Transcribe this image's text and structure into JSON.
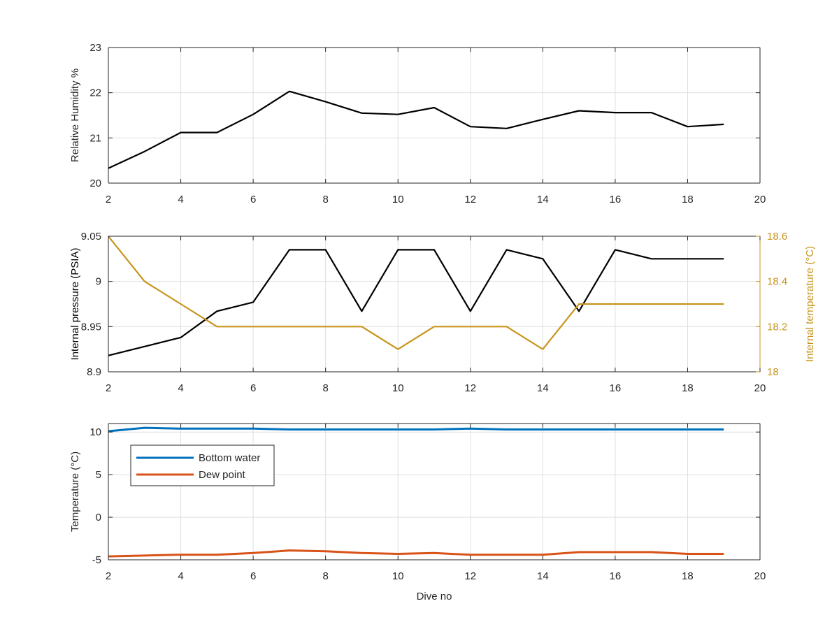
{
  "chart_data": [
    {
      "type": "line",
      "xlabel": "",
      "ylabel": "Relative Humidity %",
      "xlim": [
        2,
        20
      ],
      "ylim": [
        20,
        23
      ],
      "xticks": [
        2,
        4,
        6,
        8,
        10,
        12,
        14,
        16,
        18,
        20
      ],
      "yticks": [
        20,
        21,
        22,
        23
      ],
      "grid": true,
      "series": [
        {
          "color": "#000000",
          "x": [
            2,
            3,
            4,
            5,
            6,
            7,
            8,
            9,
            10,
            11,
            12,
            13,
            14,
            15,
            16,
            17,
            18,
            19
          ],
          "values": [
            20.33,
            20.7,
            21.12,
            21.12,
            21.52,
            22.03,
            21.8,
            21.55,
            21.52,
            21.67,
            21.25,
            21.21,
            21.41,
            21.6,
            21.56,
            21.56,
            21.25,
            21.3
          ]
        }
      ]
    },
    {
      "type": "line",
      "xlabel": "",
      "ylabel": "Internal pressure (PSIA)",
      "ylabel_right": "Internal temperature (°C)",
      "xlim": [
        2,
        20
      ],
      "ylim": [
        8.9,
        9.05
      ],
      "ylim_right": [
        18,
        18.6
      ],
      "xticks": [
        2,
        4,
        6,
        8,
        10,
        12,
        14,
        16,
        18,
        20
      ],
      "yticks": [
        "8.9",
        "8.95",
        "9",
        "9.05"
      ],
      "yticks_right": [
        "18",
        "18.2",
        "18.4",
        "18.6"
      ],
      "grid": true,
      "series": [
        {
          "axis": "left",
          "color": "#000000",
          "x": [
            2,
            3,
            4,
            5,
            6,
            7,
            8,
            9,
            10,
            11,
            12,
            13,
            14,
            15,
            16,
            17,
            18,
            19
          ],
          "values": [
            8.918,
            8.928,
            8.938,
            8.967,
            8.977,
            9.035,
            9.035,
            8.967,
            9.035,
            9.035,
            8.967,
            9.035,
            9.025,
            8.967,
            9.035,
            9.025,
            9.025,
            9.025
          ]
        },
        {
          "axis": "right",
          "color": "#C8941C",
          "x": [
            2,
            3,
            4,
            5,
            6,
            7,
            8,
            9,
            10,
            11,
            12,
            13,
            14,
            15,
            16,
            17,
            18,
            19
          ],
          "values": [
            18.6,
            18.4,
            18.3,
            18.2,
            18.2,
            18.2,
            18.2,
            18.2,
            18.1,
            18.2,
            18.2,
            18.2,
            18.1,
            18.3,
            18.3,
            18.3,
            18.3,
            18.3
          ]
        }
      ]
    },
    {
      "type": "line",
      "xlabel": "Dive no",
      "ylabel": "Temperature (°C)",
      "xlim": [
        2,
        20
      ],
      "ylim": [
        -5,
        11
      ],
      "xticks": [
        2,
        4,
        6,
        8,
        10,
        12,
        14,
        16,
        18,
        20
      ],
      "yticks": [
        -5,
        0,
        5,
        10
      ],
      "grid": true,
      "legend": "top-left",
      "series": [
        {
          "name": "Bottom water",
          "color": "#0072BD",
          "x": [
            2,
            3,
            4,
            5,
            6,
            7,
            8,
            9,
            10,
            11,
            12,
            13,
            14,
            15,
            16,
            17,
            18,
            19
          ],
          "values": [
            10.1,
            10.5,
            10.4,
            10.4,
            10.4,
            10.3,
            10.3,
            10.3,
            10.3,
            10.3,
            10.4,
            10.3,
            10.3,
            10.3,
            10.3,
            10.3,
            10.3,
            10.3
          ]
        },
        {
          "name": "Dew point",
          "color": "#D95319",
          "x": [
            2,
            3,
            4,
            5,
            6,
            7,
            8,
            9,
            10,
            11,
            12,
            13,
            14,
            15,
            16,
            17,
            18,
            19
          ],
          "values": [
            -4.6,
            -4.5,
            -4.4,
            -4.4,
            -4.2,
            -3.9,
            -4,
            -4.2,
            -4.3,
            -4.2,
            -4.4,
            -4.4,
            -4.4,
            -4.1,
            -4.1,
            -4.1,
            -4.3,
            -4.3
          ]
        }
      ]
    }
  ]
}
